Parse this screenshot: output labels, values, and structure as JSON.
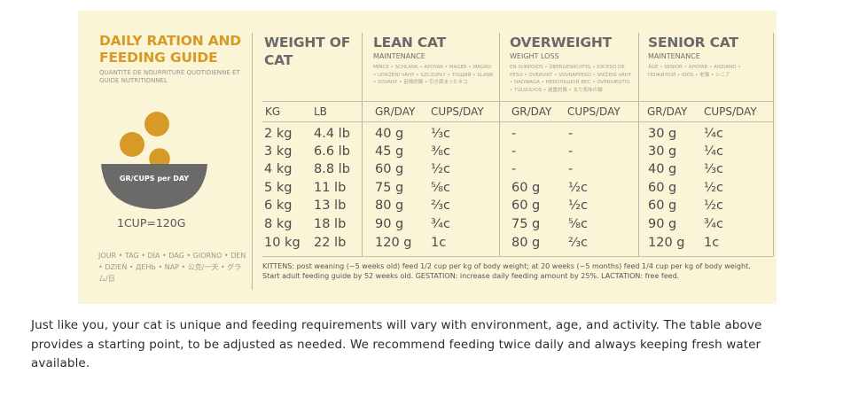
{
  "guide": {
    "title": "DAILY RATION AND FEEDING GUIDE",
    "subtitle": "QUANTITÉ DE NOURRITURE QUOTIDIENNE ET GUIDE NUTRITIONNEL",
    "bowl_label": "GR/CUPS per DAY",
    "cup_equivalence": "1CUP=120G",
    "per_day_words": "JOUR • TAG • DÍA • DAG • GIORNO • DEN • DZIEŃ • ДЕНЬ • NAP • 公克/一天 • グラム/日"
  },
  "weight_header": "WEIGHT OF CAT",
  "sections": {
    "lean": {
      "title": "LEAN CAT",
      "sub": "MAINTENANCE",
      "translations": "MINCE • SCHLANK • APOYAR • MAGER • MAGRO • UDRŽENÍ VÁHY • SZCZUPŁY • ТОЩИЙ • SLANK • SOVÁNY • 苗條的猫 • 引き締まったネコ"
    },
    "overweight": {
      "title": "OVERWEIGHT",
      "sub": "WEIGHT LOSS",
      "translations": "EN SURPOIDS • ÜBERGEWICHTIG • EXCESO DE PESO • OVERVIKT • SOVRAPPESO • SNÍŽENÍ VÁHY • NADWAGA • НЕБОЛЬШОЙ ВЕС • OVERVÆGTIG • TÚLSÚLYOS • 過重的猫 • 太り気味の猫"
    },
    "senior": {
      "title": "SENIOR CAT",
      "sub": "MAINTENANCE",
      "translations": "ÂGÉ • SENIOR • APOYAR • ANZIANO • ПОЖИЛОЙ • IDŐS • 老猫 • シニア"
    }
  },
  "columns": {
    "kg": "KG",
    "lb": "LB",
    "lean_gr": "GR/DAY",
    "lean_cups": "CUPS/DAY",
    "over_gr": "GR/DAY",
    "over_cups": "CUPS/DAY",
    "senior_gr": "GR/DAY",
    "senior_cups": "CUPS/DAY"
  },
  "rows": [
    {
      "kg": "2 kg",
      "lb": "4.4 lb",
      "lean_gr": "40 g",
      "lean_cups": "⅓c",
      "over_gr": "-",
      "over_cups": "-",
      "senior_gr": "30 g",
      "senior_cups": "¼c"
    },
    {
      "kg": "3 kg",
      "lb": "6.6 lb",
      "lean_gr": "45 g",
      "lean_cups": "⅜c",
      "over_gr": "-",
      "over_cups": "-",
      "senior_gr": "30 g",
      "senior_cups": "¼c"
    },
    {
      "kg": "4 kg",
      "lb": "8.8 lb",
      "lean_gr": "60 g",
      "lean_cups": "½c",
      "over_gr": "-",
      "over_cups": "-",
      "senior_gr": "40 g",
      "senior_cups": "⅓c"
    },
    {
      "kg": "5 kg",
      "lb": "11 lb",
      "lean_gr": "75 g",
      "lean_cups": "⅝c",
      "over_gr": "60 g",
      "over_cups": "½c",
      "senior_gr": "60 g",
      "senior_cups": "½c"
    },
    {
      "kg": "6 kg",
      "lb": "13 lb",
      "lean_gr": "80 g",
      "lean_cups": "⅔c",
      "over_gr": "60 g",
      "over_cups": "½c",
      "senior_gr": "60 g",
      "senior_cups": "½c"
    },
    {
      "kg": "8 kg",
      "lb": "18 lb",
      "lean_gr": "90 g",
      "lean_cups": "¾c",
      "over_gr": "75 g",
      "over_cups": "⅝c",
      "senior_gr": "90 g",
      "senior_cups": "¾c"
    },
    {
      "kg": "10 kg",
      "lb": "22 lb",
      "lean_gr": "120 g",
      "lean_cups": "1c",
      "over_gr": "80 g",
      "over_cups": "⅔c",
      "senior_gr": "120 g",
      "senior_cups": "1c"
    }
  ],
  "footnote": "KITTENS: post weaning (~5 weeks old) feed 1/2 cup per kg of body weight; at 20 weeks (~5 months) feed 1/4 cup per kg of body weight. Start adult feeding guide by 52 weeks old. GESTATION: increase daily feeding amount by 25%. LACTATION: free feed.",
  "caption": "Just like you, your cat is unique and feeding requirements will vary with environment, age, and activity. The table above provides a starting point, to be adjusted as needed. We recommend feeding twice daily and always keeping fresh water available.",
  "colors": {
    "panel_bg": "#fbf5d8",
    "accent_orange": "#d79a26",
    "bowl_gray": "#6b6a68",
    "text_gray": "#4a4a4a"
  }
}
